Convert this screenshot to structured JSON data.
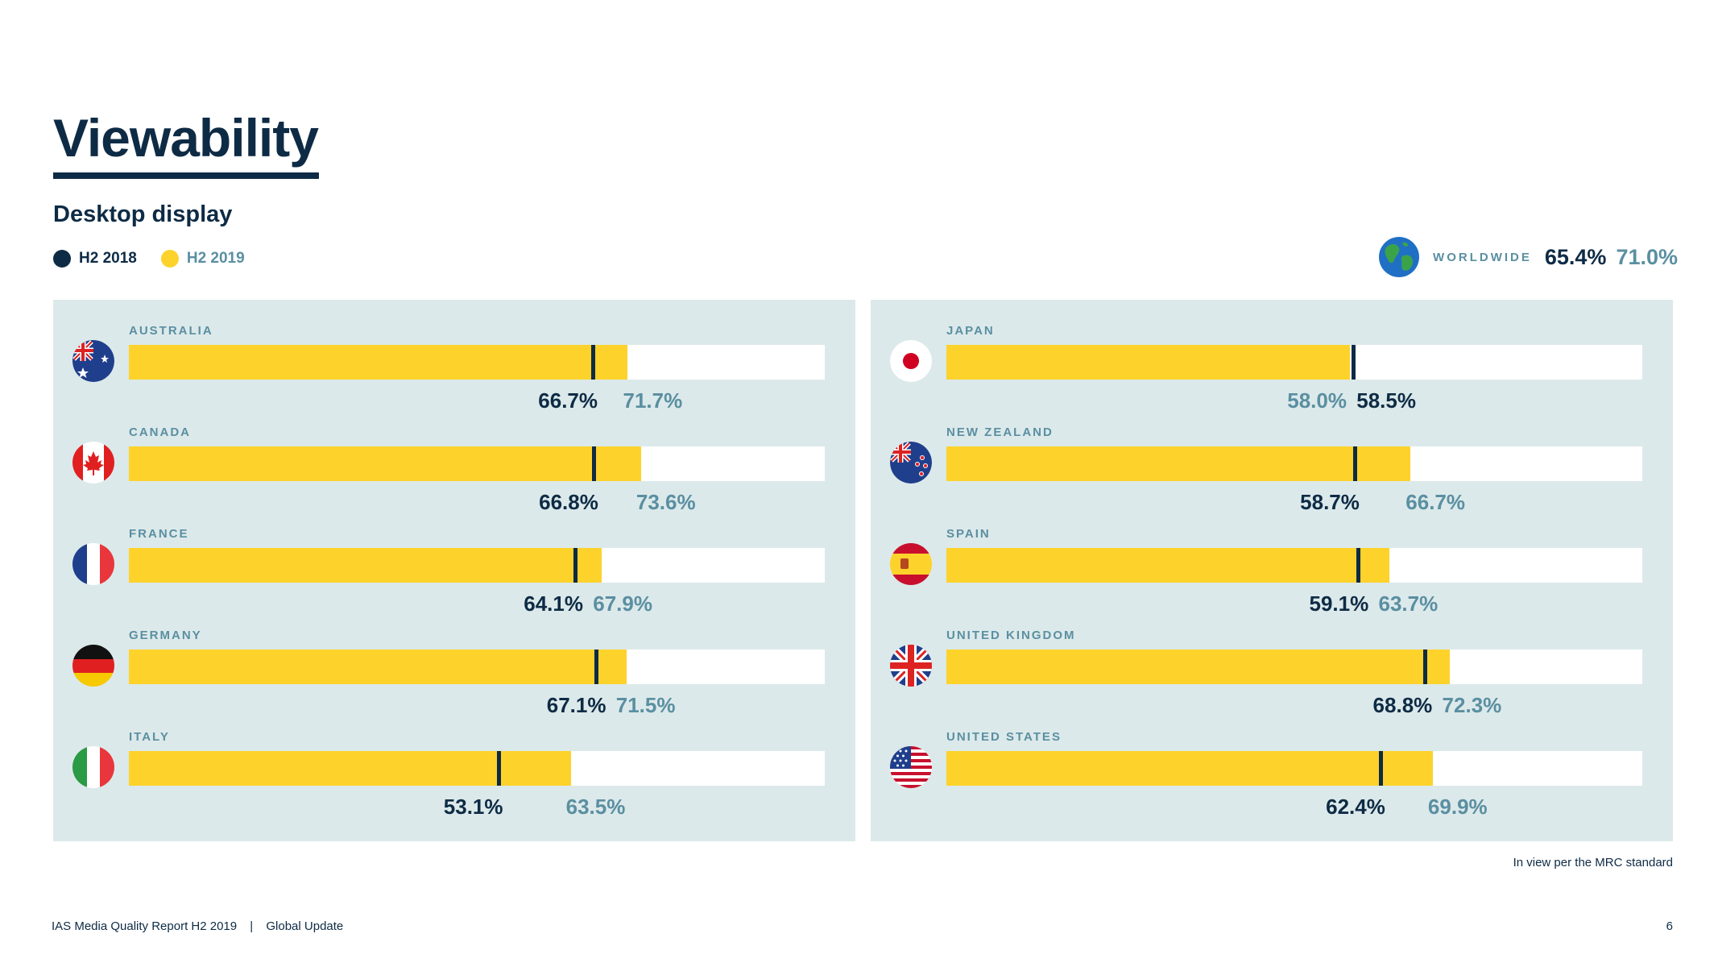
{
  "title": "Viewability",
  "subtitle": "Desktop display",
  "legend": [
    {
      "label": "H2 2018",
      "color": "#0e2b45"
    },
    {
      "label": "H2 2019",
      "color": "#fdd22b"
    }
  ],
  "worldwide": {
    "label": "WORLDWIDE",
    "h2_2018": "65.4%",
    "h2_2019": "71.0%",
    "icon": "globe-icon"
  },
  "colors": {
    "h2_2018": "#0e2b45",
    "h2_2019": "#fdd22b",
    "panel": "#dce9ea",
    "accent_text": "#5a8fa1"
  },
  "chart_data": [
    {
      "type": "bar",
      "orientation": "horizontal",
      "categories": [
        "AUSTRALIA",
        "CANADA",
        "FRANCE",
        "GERMANY",
        "ITALY"
      ],
      "series": [
        {
          "name": "H2 2018",
          "values": [
            66.7,
            66.8,
            64.1,
            67.1,
            53.1
          ],
          "labels": [
            "66.7%",
            "66.8%",
            "64.1%",
            "67.1%",
            "53.1%"
          ]
        },
        {
          "name": "H2 2019",
          "values": [
            71.7,
            73.6,
            67.9,
            71.5,
            63.5
          ],
          "labels": [
            "71.7%",
            "73.6%",
            "67.9%",
            "71.5%",
            "63.5%"
          ]
        }
      ],
      "flags": [
        "australia-flag-icon",
        "canada-flag-icon",
        "france-flag-icon",
        "germany-flag-icon",
        "italy-flag-icon"
      ],
      "xlim": [
        0,
        100
      ],
      "grid": false
    },
    {
      "type": "bar",
      "orientation": "horizontal",
      "categories": [
        "JAPAN",
        "NEW ZEALAND",
        "SPAIN",
        "UNITED KINGDOM",
        "UNITED STATES"
      ],
      "series": [
        {
          "name": "H2 2018",
          "values": [
            58.5,
            58.7,
            59.1,
            68.8,
            62.4
          ],
          "labels": [
            "58.5%",
            "58.7%",
            "59.1%",
            "68.8%",
            "62.4%"
          ]
        },
        {
          "name": "H2 2019",
          "values": [
            58.0,
            66.7,
            63.7,
            72.3,
            69.9
          ],
          "labels": [
            "58.0%",
            "66.7%",
            "63.7%",
            "72.3%",
            "69.9%"
          ]
        }
      ],
      "flags": [
        "japan-flag-icon",
        "new-zealand-flag-icon",
        "spain-flag-icon",
        "united-kingdom-flag-icon",
        "united-states-flag-icon"
      ],
      "xlim": [
        0,
        100
      ],
      "grid": false
    }
  ],
  "note": "In view per the MRC standard",
  "footer": {
    "report": "IAS Media Quality Report H2 2019",
    "separator": "|",
    "section": "Global Update",
    "page": "6"
  }
}
